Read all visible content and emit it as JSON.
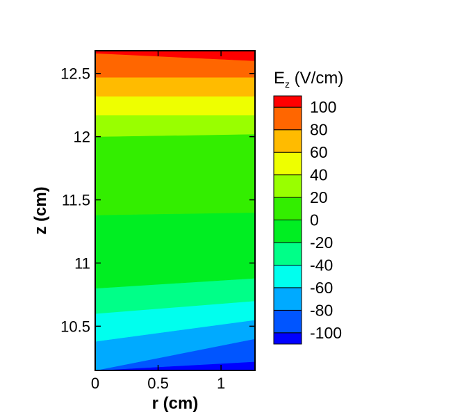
{
  "chart_data": {
    "type": "heatmap",
    "subtype": "filled-contour",
    "xlabel": "r (cm)",
    "ylabel": "z (cm)",
    "xlim": [
      0,
      1.27
    ],
    "ylim": [
      10.15,
      12.68
    ],
    "xticks": [
      0,
      0.5,
      1
    ],
    "xtick_labels": [
      "0",
      "0.5",
      "1"
    ],
    "yticks": [
      10.5,
      11,
      11.5,
      12,
      12.5
    ],
    "ytick_labels": [
      "10.5",
      "11",
      "11.5",
      "12",
      "12.5"
    ],
    "colorbar": {
      "title_main": "E",
      "title_sub": "z",
      "title_unit": " (V/cm)",
      "levels": [
        -110,
        -100,
        -80,
        -60,
        -40,
        -20,
        0,
        20,
        40,
        60,
        80,
        100,
        110
      ],
      "tick_labels": [
        "100",
        "80",
        "60",
        "40",
        "20",
        "0",
        "-20",
        "-40",
        "-60",
        "-80",
        "-100"
      ],
      "colors": [
        "#0000ff",
        "#0055ff",
        "#00aaff",
        "#00ffee",
        "#00ff88",
        "#00ee22",
        "#33ee00",
        "#99ff00",
        "#eeff00",
        "#ffbb00",
        "#ff6600",
        "#ff0000"
      ]
    },
    "bands": [
      {
        "value_range": [
          -110,
          -100
        ],
        "z_low_at_r0": 10.15,
        "z_high_at_r0": 10.15,
        "z_low_at_rmax": 10.15,
        "z_high_at_rmax": 10.22
      },
      {
        "value_range": [
          -100,
          -80
        ],
        "z_low_at_r0": 10.15,
        "z_high_at_r0": 10.15,
        "z_low_at_rmax": 10.22,
        "z_high_at_rmax": 10.4
      },
      {
        "value_range": [
          -80,
          -60
        ],
        "z_low_at_r0": 10.15,
        "z_high_at_r0": 10.38,
        "z_low_at_rmax": 10.4,
        "z_high_at_rmax": 10.55
      },
      {
        "value_range": [
          -60,
          -40
        ],
        "z_low_at_r0": 10.38,
        "z_high_at_r0": 10.6,
        "z_low_at_rmax": 10.55,
        "z_high_at_rmax": 10.7
      },
      {
        "value_range": [
          -40,
          -20
        ],
        "z_low_at_r0": 10.6,
        "z_high_at_r0": 10.8,
        "z_low_at_rmax": 10.7,
        "z_high_at_rmax": 10.88
      },
      {
        "value_range": [
          -20,
          0
        ],
        "z_low_at_r0": 10.8,
        "z_high_at_r0": 11.38,
        "z_low_at_rmax": 10.88,
        "z_high_at_rmax": 11.4
      },
      {
        "value_range": [
          0,
          20
        ],
        "z_low_at_r0": 11.38,
        "z_high_at_r0": 12.0,
        "z_low_at_rmax": 11.4,
        "z_high_at_rmax": 12.02
      },
      {
        "value_range": [
          20,
          40
        ],
        "z_low_at_r0": 12.0,
        "z_high_at_r0": 12.17,
        "z_low_at_rmax": 12.02,
        "z_high_at_rmax": 12.17
      },
      {
        "value_range": [
          40,
          60
        ],
        "z_low_at_r0": 12.17,
        "z_high_at_r0": 12.32,
        "z_low_at_rmax": 12.17,
        "z_high_at_rmax": 12.32
      },
      {
        "value_range": [
          60,
          80
        ],
        "z_low_at_r0": 12.32,
        "z_high_at_r0": 12.47,
        "z_low_at_rmax": 12.32,
        "z_high_at_rmax": 12.47
      },
      {
        "value_range": [
          80,
          100
        ],
        "z_low_at_r0": 12.47,
        "z_high_at_r0": 12.66,
        "z_low_at_rmax": 12.47,
        "z_high_at_rmax": 12.6
      },
      {
        "value_range": [
          100,
          110
        ],
        "z_low_at_r0": 12.66,
        "z_high_at_r0": 12.68,
        "z_low_at_rmax": 12.6,
        "z_high_at_rmax": 12.68
      }
    ],
    "grid": false,
    "legend_placement": "right"
  }
}
